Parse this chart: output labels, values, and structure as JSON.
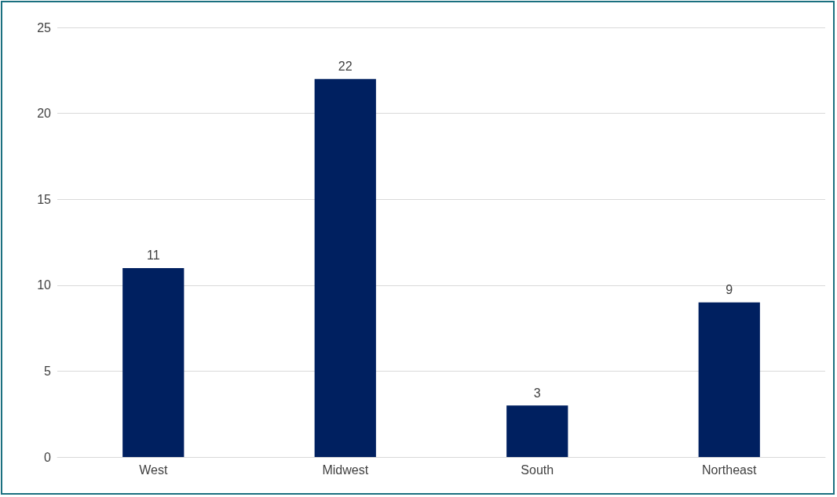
{
  "chart_data": {
    "type": "bar",
    "categories": [
      "West",
      "Midwest",
      "South",
      "Northeast"
    ],
    "values": [
      11,
      22,
      3,
      9
    ],
    "color": "#002060",
    "ylim": [
      0,
      25
    ],
    "yticks": [
      0,
      5,
      10,
      15,
      20,
      25
    ],
    "grid": "y",
    "data_labels": true
  }
}
